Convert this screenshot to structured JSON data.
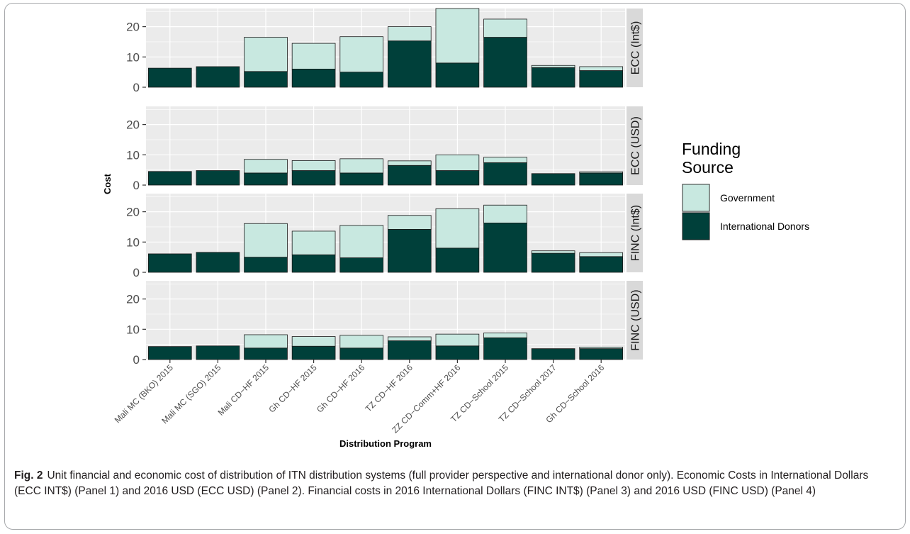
{
  "chart_data": {
    "type": "bar",
    "stacked": true,
    "xlabel": "Distribution Program",
    "ylabel": "Cost",
    "ylim": [
      0,
      26
    ],
    "yticks": [
      0,
      10,
      20
    ],
    "legend": {
      "title": "Funding\nSource",
      "placement": "right",
      "entries": [
        "Government",
        "International Donors"
      ]
    },
    "colors": {
      "Government": "#c8e8e0",
      "International Donors": "#00403a",
      "panel_bg": "#ebebeb",
      "strip_bg": "#d9d9d9",
      "grid": "#ffffff"
    },
    "categories": [
      "Mali MC (BKO) 2015",
      "Mali MC (SGO) 2015",
      "Mali CD−HF 2015",
      "Gh CD−HF 2015",
      "Gh CD−HF 2016",
      "TZ CD−HF 2016",
      "ZZ CD−Comm+HF 2016",
      "TZ CD−School 2015",
      "TZ CD−School 2017",
      "Gh CD−School 2016"
    ],
    "panels": [
      {
        "name": "ECC (Int$)",
        "series": [
          {
            "name": "International Donors",
            "values": [
              6.3,
              6.8,
              5.2,
              6.0,
              5.0,
              15.3,
              8.0,
              16.5,
              6.5,
              5.5
            ]
          },
          {
            "name": "Government",
            "values": [
              0.0,
              0.0,
              11.3,
              8.5,
              11.7,
              4.7,
              18.0,
              6.0,
              0.7,
              1.3
            ]
          }
        ]
      },
      {
        "name": "ECC (USD)",
        "series": [
          {
            "name": "International Donors",
            "values": [
              4.5,
              4.8,
              4.0,
              4.8,
              4.0,
              6.5,
              4.8,
              7.4,
              3.8,
              4.0
            ]
          },
          {
            "name": "Government",
            "values": [
              0.0,
              0.0,
              4.5,
              3.3,
              4.7,
              1.5,
              5.2,
              1.8,
              0.0,
              0.4
            ]
          }
        ]
      },
      {
        "name": "FINC (Int$)",
        "series": [
          {
            "name": "International Donors",
            "values": [
              6.1,
              6.6,
              5.0,
              5.8,
              4.8,
              14.2,
              8.0,
              16.3,
              6.3,
              5.2
            ]
          },
          {
            "name": "Government",
            "values": [
              0.0,
              0.0,
              11.1,
              7.8,
              10.7,
              4.6,
              13.0,
              5.9,
              0.8,
              1.3
            ]
          }
        ]
      },
      {
        "name": "FINC (USD)",
        "series": [
          {
            "name": "International Donors",
            "values": [
              4.3,
              4.5,
              3.8,
              4.4,
              3.8,
              6.2,
              4.5,
              7.2,
              3.6,
              3.6
            ]
          },
          {
            "name": "Government",
            "values": [
              0.0,
              0.0,
              4.4,
              3.2,
              4.2,
              1.3,
              3.9,
              1.6,
              0.0,
              0.5
            ]
          }
        ]
      }
    ]
  },
  "caption": {
    "label": "Fig. 2",
    "text": "Unit financial and economic cost of distribution of ITN distribution systems (full provider perspective and international donor only). Economic Costs in International Dollars (ECC INT$) (Panel 1) and 2016 USD (ECC USD) (Panel 2). Financial costs in 2016 International Dollars (FINC INT$) (Panel 3) and 2016 USD (FINC USD) (Panel 4)"
  }
}
